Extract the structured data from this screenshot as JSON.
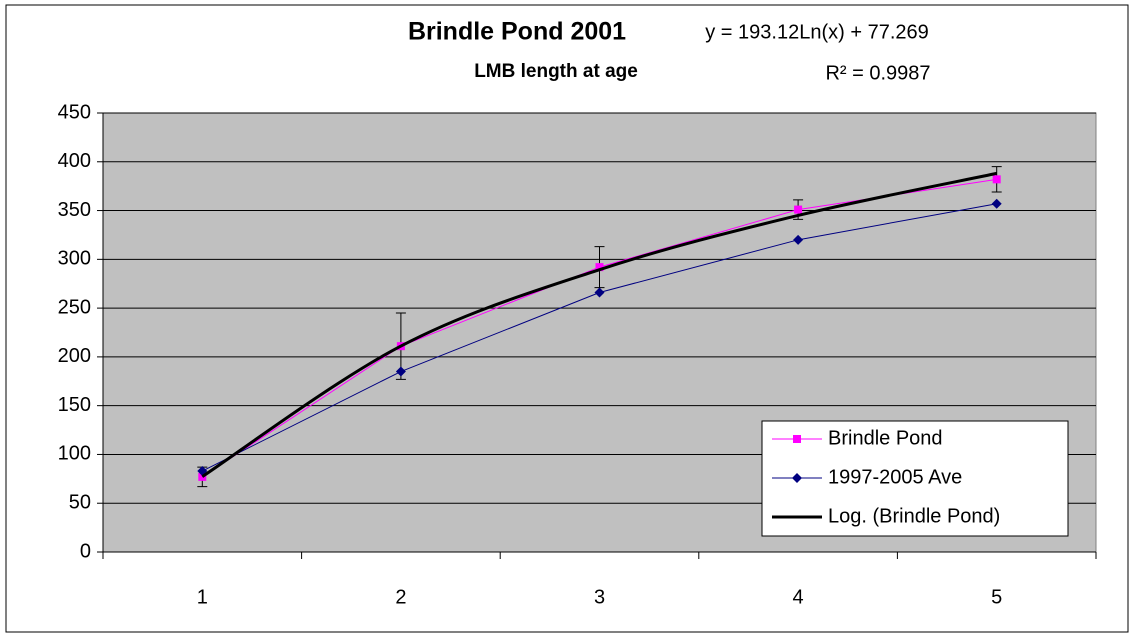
{
  "chart_data": {
    "type": "line",
    "title": "Brindle Pond 2001",
    "subtitle": "LMB length at age",
    "annotations": [
      "y = 193.12Ln(x) + 77.269",
      "R² = 0.9987"
    ],
    "categories": [
      "1",
      "2",
      "3",
      "4",
      "5"
    ],
    "series": [
      {
        "name": "Brindle Pond",
        "color": "#ff00ff",
        "marker": "square",
        "values": [
          77,
          211,
          292,
          351,
          382
        ],
        "errors": [
          10,
          34,
          21,
          10,
          13
        ]
      },
      {
        "name": "1997-2005 Ave",
        "color": "#000080",
        "marker": "diamond",
        "values": [
          83,
          185,
          266,
          320,
          357
        ]
      },
      {
        "name": "Log. (Brindle Pond)",
        "color": "#000000",
        "trendline": true,
        "values": [
          77.3,
          211.1,
          289.4,
          345.0,
          388.1
        ]
      }
    ],
    "ylim": [
      0,
      450
    ],
    "yticks": [
      0,
      50,
      100,
      150,
      200,
      250,
      300,
      350,
      400,
      450
    ],
    "grid": true,
    "legend": "lower right"
  }
}
